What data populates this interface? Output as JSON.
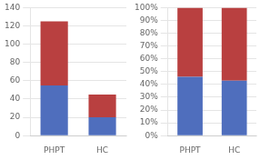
{
  "chart_data": [
    {
      "type": "bar",
      "categories": [
        "PHPT",
        "HC"
      ],
      "series": [
        {
          "color": "#4F6EBD",
          "values": [
            55,
            20
          ]
        },
        {
          "color": "#B94040",
          "values": [
            70,
            25
          ]
        }
      ],
      "stacked": true,
      "ylim": [
        0,
        140
      ],
      "yticks": [
        0,
        20,
        40,
        60,
        80,
        100,
        120,
        140
      ],
      "grid": true
    },
    {
      "type": "bar",
      "categories": [
        "PHPT",
        "HC"
      ],
      "series": [
        {
          "color": "#4F6EBD",
          "values": [
            46,
            43
          ]
        },
        {
          "color": "#B94040",
          "values": [
            54,
            57
          ]
        }
      ],
      "stacked": true,
      "ylim": [
        0,
        100
      ],
      "yticks": [
        {
          "value": 0,
          "label": "0%"
        },
        {
          "value": 10,
          "label": "10%"
        },
        {
          "value": 20,
          "label": "20%"
        },
        {
          "value": 30,
          "label": "30%"
        },
        {
          "value": 40,
          "label": "40%"
        },
        {
          "value": 50,
          "label": "50%"
        },
        {
          "value": 60,
          "label": "60%"
        },
        {
          "value": 70,
          "label": "70%"
        },
        {
          "value": 80,
          "label": "80%"
        },
        {
          "value": 90,
          "label": "90%"
        },
        {
          "value": 100,
          "label": "100%"
        }
      ],
      "grid": true
    }
  ]
}
